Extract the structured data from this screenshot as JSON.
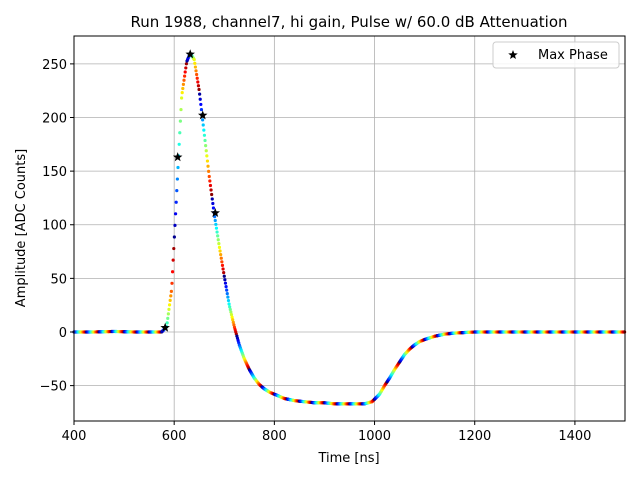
{
  "chart_data": {
    "type": "scatter",
    "title": "Run 1988, channel7, hi gain, Pulse w/ 60.0 dB Attenuation",
    "xlabel": "Time [ns]",
    "ylabel": "Amplitude [ADC Counts]",
    "xlim": [
      400,
      1500
    ],
    "ylim": [
      -83,
      276
    ],
    "xticks": [
      400,
      600,
      800,
      1000,
      1200,
      1400
    ],
    "yticks": [
      -50,
      0,
      50,
      100,
      150,
      200,
      250
    ],
    "grid": true,
    "legend_position": "top-right",
    "colormap": "jet",
    "waveform": {
      "name": "",
      "x": [
        400,
        440,
        480,
        520,
        560,
        575,
        585,
        595,
        605,
        615,
        625,
        632,
        640,
        650,
        660,
        670,
        680,
        690,
        700,
        710,
        720,
        730,
        740,
        750,
        760,
        770,
        780,
        790,
        800,
        820,
        840,
        860,
        880,
        900,
        920,
        940,
        960,
        980,
        995,
        1010,
        1020,
        1030,
        1040,
        1050,
        1060,
        1070,
        1080,
        1090,
        1100,
        1120,
        1140,
        1160,
        1180,
        1200,
        1250,
        1300,
        1350,
        1400,
        1450,
        1500
      ],
      "y": [
        0,
        0,
        0.5,
        0,
        0,
        0,
        5,
        40,
        130,
        220,
        252,
        260,
        254,
        225,
        185,
        145,
        110,
        80,
        52,
        25,
        5,
        -12,
        -25,
        -35,
        -43,
        -49,
        -53,
        -56,
        -58,
        -62,
        -64,
        -65,
        -66,
        -66,
        -67,
        -67,
        -67,
        -67,
        -65,
        -58,
        -50,
        -43,
        -35,
        -28,
        -21,
        -16,
        -12,
        -9,
        -7,
        -4,
        -2,
        -1,
        -0.5,
        0,
        0,
        0,
        0,
        0,
        0,
        0
      ]
    },
    "max_phase": {
      "name": "Max Phase",
      "x": [
        582,
        607,
        632,
        657,
        682
      ],
      "y": [
        4,
        163,
        259,
        202,
        111
      ]
    }
  }
}
